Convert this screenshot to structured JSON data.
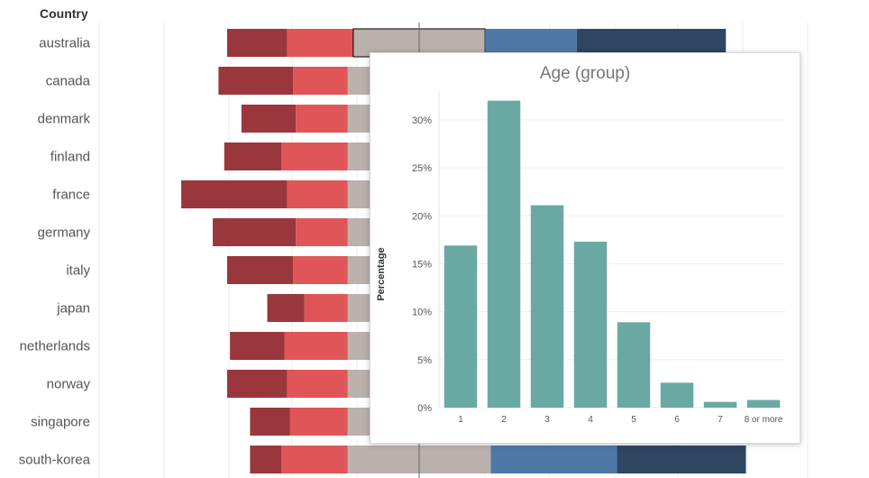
{
  "header": {
    "country_label": "Country"
  },
  "colors": {
    "segments": [
      "#9a373c",
      "#e05558",
      "#bab0ac",
      "#4e79a7",
      "#2e4661"
    ],
    "highlight_border": "#000000",
    "hist_bar": "#6aa9a3",
    "gridline": "#eeeeee",
    "zero_line": "#666666"
  },
  "chart_data": [
    {
      "type": "bar",
      "orientation": "horizontal",
      "stacked": "diverging",
      "grid": true,
      "xlabel": "",
      "ylabel": "Country",
      "categories": [
        "australia",
        "canada",
        "denmark",
        "finland",
        "france",
        "germany",
        "italy",
        "japan",
        "netherlands",
        "norway",
        "singapore",
        "south-korea"
      ],
      "highlighted": {
        "category": "australia",
        "segment": 2
      },
      "series": [
        {
          "values": [
            21,
            26,
            19,
            20,
            37,
            29,
            23,
            13,
            19,
            21,
            14,
            11
          ]
        },
        {
          "values": [
            23,
            19,
            18,
            23,
            21,
            18,
            19,
            15,
            22,
            21,
            20,
            23
          ]
        },
        {
          "values": [
            46,
            50,
            50,
            50,
            50,
            50,
            50,
            50,
            50,
            50,
            50,
            50
          ]
        },
        {
          "values": [
            32,
            32,
            32,
            32,
            32,
            32,
            32,
            32,
            32,
            32,
            32,
            44
          ]
        },
        {
          "values": [
            52,
            7,
            16,
            6,
            0,
            2,
            8,
            14,
            7,
            8,
            8,
            45
          ]
        }
      ]
    },
    {
      "type": "bar",
      "title": "Age (group)",
      "xlabel": "",
      "ylabel": "Percentage",
      "categories": [
        "1",
        "2",
        "3",
        "4",
        "5",
        "6",
        "7",
        "8 or more"
      ],
      "values": [
        16.9,
        32.0,
        21.1,
        17.3,
        8.9,
        2.6,
        0.6,
        0.8
      ],
      "ylim": [
        0,
        33
      ],
      "yticks": [
        "0%",
        "5%",
        "10%",
        "15%",
        "20%",
        "25%",
        "30%"
      ],
      "ytick_values": [
        0,
        5,
        10,
        15,
        20,
        25,
        30
      ],
      "grid": true
    }
  ]
}
